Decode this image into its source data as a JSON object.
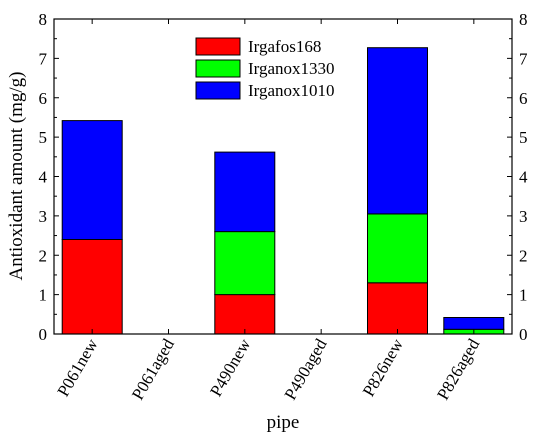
{
  "chart_data": {
    "type": "bar",
    "stacked": true,
    "title": "",
    "xlabel": "pipe",
    "ylabel": "Antioxidant amount (mg/g)",
    "ylim": [
      0,
      8
    ],
    "yticks": [
      0,
      1,
      2,
      3,
      4,
      5,
      6,
      7,
      8
    ],
    "y_axis_right_mirror": true,
    "grid": false,
    "legend_position": "top-center",
    "categories": [
      "P061new",
      "P061aged",
      "P490new",
      "P490aged",
      "P826new",
      "P826aged"
    ],
    "series": [
      {
        "name": "Irgafos168",
        "color": "#ff0000",
        "values": [
          2.4,
          0,
          1.0,
          0,
          1.3,
          0
        ]
      },
      {
        "name": "Irganox1330",
        "color": "#00ff00",
        "values": [
          0,
          0,
          1.6,
          0,
          1.75,
          0.12
        ]
      },
      {
        "name": "Irganox1010",
        "color": "#0000ff",
        "values": [
          3.02,
          0,
          2.02,
          0,
          4.22,
          0.3
        ]
      }
    ]
  }
}
